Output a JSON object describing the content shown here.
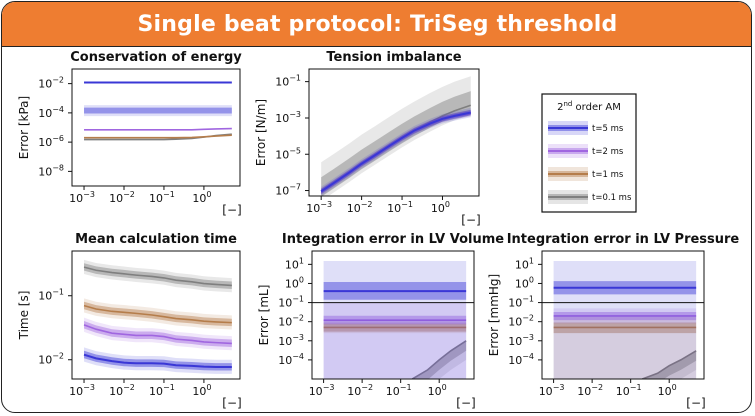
{
  "banner_title": "Single beat protocol: TriSeg threshold",
  "colors": {
    "t5": "#3a37d6",
    "t2": "#a066e0",
    "t1": "#b57d4b",
    "t01": "#7f7f7f",
    "banner": "#ee7d31"
  },
  "legend": {
    "title_prefix": "2",
    "title_sup": "nd",
    "title_suffix": " order AM",
    "entries": [
      "t=5 ms",
      "t=2 ms",
      "t=1 ms",
      "t=0.1 ms"
    ]
  },
  "chart_data": [
    {
      "type": "line",
      "title": "Conservation of energy",
      "ylabel": "Error [kPa]",
      "xlabel": "[−]",
      "xscale": "log",
      "yscale": "log",
      "xlim": [
        0.0005,
        8
      ],
      "ylim": [
        1e-09,
        0.1
      ],
      "xticks": [
        "10^-3",
        "10^-2",
        "10^-1",
        "10^0"
      ],
      "yticks": [
        "10^-8",
        "10^-6",
        "10^-4",
        "10^-2"
      ],
      "x": [
        0.001,
        0.002,
        0.005,
        0.01,
        0.02,
        0.05,
        0.1,
        0.2,
        0.5,
        1,
        2,
        5
      ],
      "series": [
        {
          "name": "t=5 ms",
          "color": "t5",
          "values": [
            0.012,
            0.012,
            0.012,
            0.012,
            0.012,
            0.012,
            0.012,
            0.012,
            0.012,
            0.012,
            0.012,
            0.012
          ],
          "band": [
            0.0075,
            0.019
          ],
          "outer": [
            0.005,
            0.028
          ]
        },
        {
          "name": "t=2 ms",
          "color": "t2",
          "values": [
            7e-06,
            7e-06,
            7e-06,
            7e-06,
            7e-06,
            7e-06,
            7e-06,
            7e-06,
            7e-06,
            7.5e-06,
            8e-06,
            8.5e-06
          ],
          "band": [
            4e-06,
            1.1e-05
          ],
          "outer": [
            2.5e-06,
            1.8e-05
          ]
        },
        {
          "name": "t=1 ms",
          "color": "t1",
          "values": [
            2e-06,
            2e-06,
            2e-06,
            2e-06,
            2e-06,
            2e-06,
            2e-06,
            2e-06,
            2.1e-06,
            2.3e-06,
            2.6e-06,
            3e-06
          ],
          "band": [
            1.3e-06,
            3.2e-06
          ],
          "outer": [
            8e-07,
            5e-06
          ]
        },
        {
          "name": "t=0.1 ms",
          "color": "t01",
          "values": [
            1.5e-06,
            1.5e-06,
            1.5e-06,
            1.5e-06,
            1.5e-06,
            1.5e-06,
            1.5e-06,
            1.6e-06,
            1.8e-06,
            2.2e-06,
            2.8e-06,
            3.5e-06
          ],
          "band": [
            1e-06,
            2.5e-06
          ],
          "outer": [
            6e-07,
            4e-06
          ]
        }
      ]
    },
    {
      "type": "line",
      "title": "Tension imbalance",
      "ylabel": "Error [N/m]",
      "xlabel": "[−]",
      "xscale": "log",
      "yscale": "log",
      "xlim": [
        0.0005,
        8
      ],
      "ylim": [
        5e-08,
        0.5
      ],
      "xticks": [
        "10^-3",
        "10^-2",
        "10^-1",
        "10^0"
      ],
      "yticks": [
        "10^-7",
        "10^-5",
        "10^-3",
        "10^-1"
      ],
      "x": [
        0.001,
        0.002,
        0.005,
        0.01,
        0.02,
        0.05,
        0.1,
        0.2,
        0.5,
        1,
        2,
        5
      ],
      "series": [
        {
          "name": "t=5 ms",
          "color": "t5",
          "values": [
            9e-08,
            2.5e-07,
            1e-06,
            3e-06,
            8e-06,
            3e-05,
            8e-05,
            0.0002,
            0.0005,
            0.0009,
            0.0013,
            0.002
          ],
          "band": [
            0.7,
            1.4
          ],
          "outer": [
            0.55,
            1.8
          ]
        },
        {
          "name": "t=2 ms",
          "color": "t2",
          "values": [
            9e-08,
            2.5e-07,
            1e-06,
            3e-06,
            8e-06,
            3e-05,
            8e-05,
            0.0002,
            0.0005,
            0.0009,
            0.0013,
            0.0019
          ],
          "band": [
            0.8,
            1.25
          ],
          "outer": [
            0.65,
            1.5
          ]
        },
        {
          "name": "t=1 ms",
          "color": "t1",
          "values": [
            9e-08,
            2.5e-07,
            1e-06,
            3e-06,
            8e-06,
            3e-05,
            8e-05,
            0.0002,
            0.0005,
            0.0009,
            0.0013,
            0.0019
          ],
          "band": [
            0.8,
            1.25
          ],
          "outer": [
            0.65,
            1.5
          ]
        },
        {
          "name": "t=0.1 ms",
          "color": "t01",
          "values": [
            9e-08,
            2.5e-07,
            1e-06,
            3e-06,
            8e-06,
            3e-05,
            8e-05,
            0.0002,
            0.0006,
            0.0013,
            0.0025,
            0.005
          ],
          "band": [
            0.5,
            6
          ],
          "outer": [
            0.3,
            40
          ]
        }
      ]
    },
    {
      "type": "line",
      "title": "Mean calculation time",
      "ylabel": "Time [s]",
      "xlabel": "[−]",
      "xscale": "log",
      "yscale": "log",
      "xlim": [
        0.0005,
        8
      ],
      "ylim": [
        0.005,
        0.5
      ],
      "xticks": [
        "10^-3",
        "10^-2",
        "10^-1",
        "10^0"
      ],
      "yticks": [
        "10^-2",
        "10^-1"
      ],
      "x": [
        0.001,
        0.002,
        0.005,
        0.01,
        0.02,
        0.05,
        0.1,
        0.2,
        0.5,
        1,
        2,
        5
      ],
      "series": [
        {
          "name": "t=5 ms",
          "color": "t5",
          "values": [
            0.012,
            0.0105,
            0.0095,
            0.009,
            0.0088,
            0.0088,
            0.0087,
            0.0082,
            0.008,
            0.0078,
            0.0077,
            0.0077
          ],
          "band": [
            0.88,
            1.15
          ],
          "outer": [
            0.78,
            1.3
          ]
        },
        {
          "name": "t=2 ms",
          "color": "t2",
          "values": [
            0.035,
            0.03,
            0.026,
            0.025,
            0.024,
            0.024,
            0.023,
            0.021,
            0.02,
            0.019,
            0.0185,
            0.018
          ],
          "band": [
            0.88,
            1.15
          ],
          "outer": [
            0.78,
            1.3
          ]
        },
        {
          "name": "t=1 ms",
          "color": "t1",
          "values": [
            0.07,
            0.062,
            0.057,
            0.055,
            0.053,
            0.05,
            0.047,
            0.044,
            0.042,
            0.04,
            0.039,
            0.038
          ],
          "band": [
            0.88,
            1.15
          ],
          "outer": [
            0.78,
            1.3
          ]
        },
        {
          "name": "t=0.1 ms",
          "color": "t01",
          "values": [
            0.28,
            0.25,
            0.23,
            0.22,
            0.21,
            0.2,
            0.19,
            0.175,
            0.165,
            0.155,
            0.15,
            0.145
          ],
          "band": [
            0.88,
            1.15
          ],
          "outer": [
            0.78,
            1.3
          ]
        }
      ]
    },
    {
      "type": "line",
      "title": "Integration error in LV Volume",
      "ylabel": "Error [mL]",
      "xlabel": "[−]",
      "xscale": "log",
      "yscale": "log",
      "xlim": [
        0.0005,
        8
      ],
      "ylim": [
        1e-05,
        50
      ],
      "xticks": [
        "10^-3",
        "10^-2",
        "10^-1",
        "10^0"
      ],
      "yticks": [
        "10^-4",
        "10^-3",
        "10^-2",
        "10^-1",
        "10^0",
        "10^1"
      ],
      "x": [
        0.001,
        0.002,
        0.005,
        0.01,
        0.02,
        0.05,
        0.1,
        0.2,
        0.5,
        1,
        2,
        5
      ],
      "series": [
        {
          "name": "t=5 ms",
          "color": "t5",
          "values": [
            0.4,
            0.4,
            0.4,
            0.4,
            0.4,
            0.4,
            0.4,
            0.4,
            0.4,
            0.4,
            0.4,
            0.4
          ],
          "band": [
            0.35,
            3
          ],
          "outer": [
            1e-05,
            20
          ]
        },
        {
          "name": "t=2 ms",
          "color": "t2",
          "values": [
            0.012,
            0.012,
            0.012,
            0.012,
            0.012,
            0.012,
            0.012,
            0.012,
            0.012,
            0.012,
            0.012,
            0.012
          ],
          "band": [
            0.6,
            1.7
          ],
          "outer": [
            1e-05,
            1
          ]
        },
        {
          "name": "t=1 ms",
          "color": "t1",
          "values": [
            0.005,
            0.005,
            0.005,
            0.005,
            0.005,
            0.005,
            0.005,
            0.005,
            0.005,
            0.005,
            0.005,
            0.005
          ],
          "band": [
            0.6,
            1.6
          ],
          "outer": [
            0.5,
            2
          ]
        },
        {
          "name": "t=0.1 ms",
          "color": "t01",
          "values": [
            null,
            null,
            null,
            null,
            null,
            null,
            null,
            1e-05,
            3e-05,
            0.0001,
            0.0003,
            0.001
          ],
          "band": [
            0.3,
            1
          ],
          "outer": [
            0.1,
            1
          ]
        }
      ],
      "break_at": 0.1
    },
    {
      "type": "line",
      "title": "Integration error in LV Pressure",
      "ylabel": "Error [mmHg]",
      "xlabel": "[−]",
      "xscale": "log",
      "yscale": "log",
      "xlim": [
        0.0005,
        8
      ],
      "ylim": [
        1e-05,
        50
      ],
      "xticks": [
        "10^-3",
        "10^-2",
        "10^-1",
        "10^0"
      ],
      "yticks": [
        "10^-4",
        "10^-3",
        "10^-2",
        "10^-1",
        "10^0",
        "10^1"
      ],
      "x": [
        0.001,
        0.002,
        0.005,
        0.01,
        0.02,
        0.05,
        0.1,
        0.2,
        0.5,
        1,
        2,
        5
      ],
      "series": [
        {
          "name": "t=5 ms",
          "color": "t5",
          "values": [
            0.6,
            0.6,
            0.6,
            0.6,
            0.6,
            0.6,
            0.6,
            0.6,
            0.6,
            0.6,
            0.6,
            0.6
          ],
          "band": [
            0.45,
            2.2
          ],
          "outer": [
            1e-05,
            40
          ]
        },
        {
          "name": "t=2 ms",
          "color": "t2",
          "values": [
            0.02,
            0.02,
            0.02,
            0.02,
            0.02,
            0.02,
            0.02,
            0.02,
            0.02,
            0.02,
            0.02,
            0.02
          ],
          "band": [
            0.6,
            1.6
          ],
          "outer": [
            0.4,
            2.5
          ]
        },
        {
          "name": "t=1 ms",
          "color": "t1",
          "values": [
            0.005,
            0.005,
            0.005,
            0.005,
            0.005,
            0.005,
            0.005,
            0.005,
            0.005,
            0.005,
            0.005,
            0.005
          ],
          "band": [
            0.5,
            1.8
          ],
          "outer": [
            0.0004,
            4
          ]
        },
        {
          "name": "t=0.1 ms",
          "color": "t01",
          "values": [
            null,
            null,
            null,
            null,
            null,
            null,
            null,
            1e-05,
            2e-05,
            5e-05,
            0.0001,
            0.0003
          ],
          "band": [
            0.3,
            1
          ],
          "outer": [
            0.1,
            1
          ]
        }
      ],
      "break_at": 0.1
    }
  ]
}
